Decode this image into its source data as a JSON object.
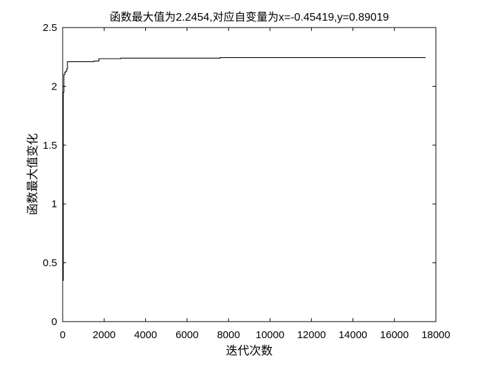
{
  "chart_data": {
    "type": "line",
    "title": "函数最大值为2.2454,对应自变量为x=-0.45419,y=0.89019",
    "xlabel": "迭代次数",
    "ylabel": "函数最大值变化",
    "xlim": [
      0,
      18000
    ],
    "ylim": [
      0,
      2.5
    ],
    "xticks": [
      0,
      2000,
      4000,
      6000,
      8000,
      10000,
      12000,
      14000,
      16000,
      18000
    ],
    "xtick_labels": [
      "0",
      "2000",
      "4000",
      "6000",
      "8000",
      "10000",
      "12000",
      "14000",
      "16000",
      "18000"
    ],
    "yticks": [
      0,
      0.5,
      1,
      1.5,
      2,
      2.5
    ],
    "ytick_labels": [
      "0",
      "0.5",
      "1",
      "1.5",
      "2",
      "2.5"
    ],
    "grid": false,
    "line_color": "#000000",
    "series": [
      {
        "step": true,
        "x": [
          1,
          30,
          60,
          100,
          150,
          200,
          230,
          1500,
          1750,
          2800,
          7600,
          17500
        ],
        "y": [
          0.35,
          1.95,
          2.1,
          2.12,
          2.13,
          2.15,
          2.21,
          2.215,
          2.235,
          2.24,
          2.245,
          2.2454
        ]
      }
    ]
  }
}
